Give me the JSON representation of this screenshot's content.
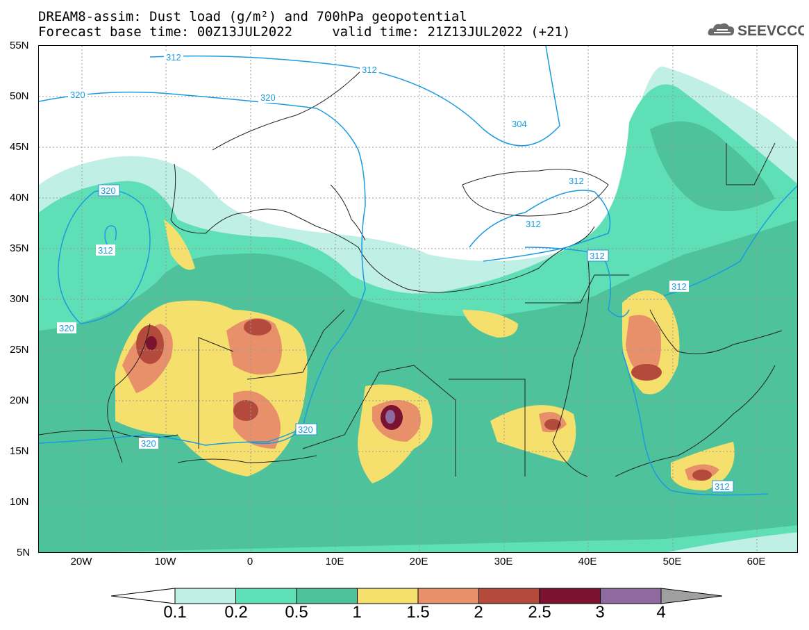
{
  "title_line1": "DREAM8-assim: Dust load (g/m²) and 700hPa geopotential",
  "title_line2": "Forecast base time: 00Z13JUL2022     valid time: 21Z13JUL2022 (+21)",
  "logo_text": "SEEVCCC",
  "lat_ticks": [
    "55N",
    "50N",
    "45N",
    "40N",
    "35N",
    "30N",
    "25N",
    "20N",
    "15N",
    "10N",
    "5N"
  ],
  "lon_ticks": [
    "20W",
    "10W",
    "0",
    "10E",
    "20E",
    "30E",
    "40E",
    "50E",
    "60E"
  ],
  "colorbar": {
    "labels": [
      "0.1",
      "0.2",
      "0.5",
      "1",
      "1.5",
      "2",
      "2.5",
      "3",
      "4"
    ],
    "colors": [
      "#c0efe6",
      "#5fdfb5",
      "#4ec29b",
      "#f5e06e",
      "#e8906a",
      "#b34a3c",
      "#7a1230",
      "#8f6aa0"
    ]
  },
  "contour_labels": {
    "a": "312",
    "b": "312",
    "c": "320",
    "d": "320",
    "e": "304",
    "f": "320",
    "g": "312",
    "h": "320",
    "i": "312",
    "j": "312",
    "k": "312",
    "l": "320",
    "m": "320",
    "n": "312",
    "o": "312"
  },
  "colors": {
    "contour": "#1a9ae0",
    "borders": "#222222"
  }
}
